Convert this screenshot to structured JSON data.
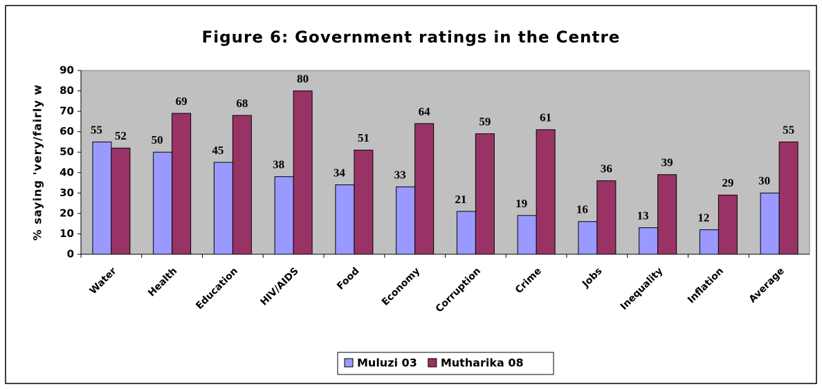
{
  "chart_data": {
    "type": "bar",
    "title": "Figure 6: Government ratings in the Centre",
    "y_label": "% saying 'very/fairly w",
    "categories": [
      "Water",
      "Health",
      "Education",
      "HIV/AIDS",
      "Food",
      "Economy",
      "Corruption",
      "Crime",
      "Jobs",
      "Inequality",
      "Inflation",
      "Average"
    ],
    "series": [
      {
        "name": "Muluzi 03",
        "color": "#9999ff",
        "values": [
          55,
          50,
          45,
          38,
          34,
          33,
          21,
          19,
          16,
          13,
          12,
          30
        ]
      },
      {
        "name": "Mutharika 08",
        "color": "#993366",
        "values": [
          52,
          69,
          68,
          80,
          51,
          64,
          59,
          61,
          36,
          39,
          29,
          55
        ]
      }
    ],
    "ylim": [
      0,
      90
    ],
    "yticks": [
      0,
      10,
      20,
      30,
      40,
      50,
      60,
      70,
      80,
      90
    ],
    "plot_background": "#c0c0c0",
    "legend": "bottom"
  }
}
